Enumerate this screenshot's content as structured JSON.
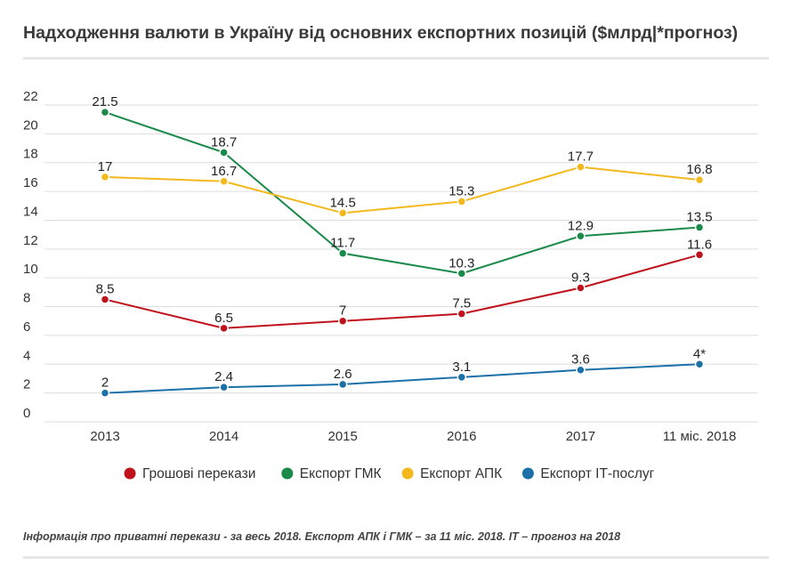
{
  "title": "Надходження валюти в Україну від основних експортних позицій ($млрд|*прогноз)",
  "footnote": "Інформація про приватні перекази - за весь 2018. Експорт АПК і ГМК – за 11 міс. 2018. ІТ – прогноз на 2018",
  "chart_data": {
    "type": "line",
    "categories": [
      "2013",
      "2014",
      "2015",
      "2016",
      "2017",
      "11 міс. 2018"
    ],
    "ylim": [
      0,
      22
    ],
    "yticks": [
      0,
      2,
      4,
      6,
      8,
      10,
      12,
      14,
      16,
      18,
      20,
      22
    ],
    "grid": true,
    "legend": "bottom",
    "series": [
      {
        "name": "Грошові перекази",
        "color": "#c0121d",
        "values": [
          8.5,
          6.5,
          7,
          7.5,
          9.3,
          11.6
        ],
        "labels": [
          "8.5",
          "6.5",
          "7",
          "7.5",
          "9.3",
          "11.6"
        ]
      },
      {
        "name": "Експорт ГМК",
        "color": "#1a8a4a",
        "values": [
          21.5,
          18.7,
          11.7,
          10.3,
          12.9,
          13.5
        ],
        "labels": [
          "21.5",
          "18.7",
          "11.7",
          "10.3",
          "12.9",
          "13.5"
        ]
      },
      {
        "name": "Експорт АПК",
        "color": "#f2b81c",
        "values": [
          17,
          16.7,
          14.5,
          15.3,
          17.7,
          16.8
        ],
        "labels": [
          "17",
          "16.7",
          "14.5",
          "15.3",
          "17.7",
          "16.8"
        ]
      },
      {
        "name": "Експорт ІТ-послуг",
        "color": "#1b70a8",
        "values": [
          2,
          2.4,
          2.6,
          3.1,
          3.6,
          4
        ],
        "labels": [
          "2",
          "2.4",
          "2.6",
          "3.1",
          "3.6",
          "4*"
        ]
      }
    ]
  }
}
